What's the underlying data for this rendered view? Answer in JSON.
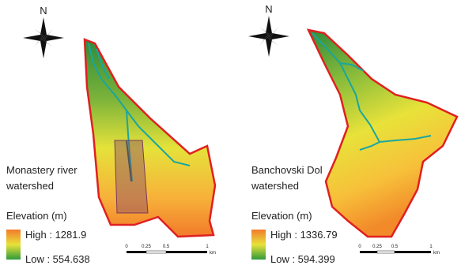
{
  "panels": [
    {
      "north": "N",
      "title_lines": [
        "Monastery river",
        "watershed"
      ],
      "legend_title": "Elevation (m)",
      "high": "High : 1281.9",
      "low": "Low : 554.638",
      "scale_labels": [
        "0",
        "0.25",
        "0.5",
        "1"
      ],
      "scale_unit": "km"
    },
    {
      "north": "N",
      "title_lines": [
        "Banchovski Dol",
        "watershed"
      ],
      "legend_title": "Elevation (m)",
      "high": "High : 1336.79",
      "low": "Low : 594.399",
      "scale_labels": [
        "0",
        "0.25",
        "0.5",
        "1"
      ],
      "scale_unit": "km"
    }
  ]
}
